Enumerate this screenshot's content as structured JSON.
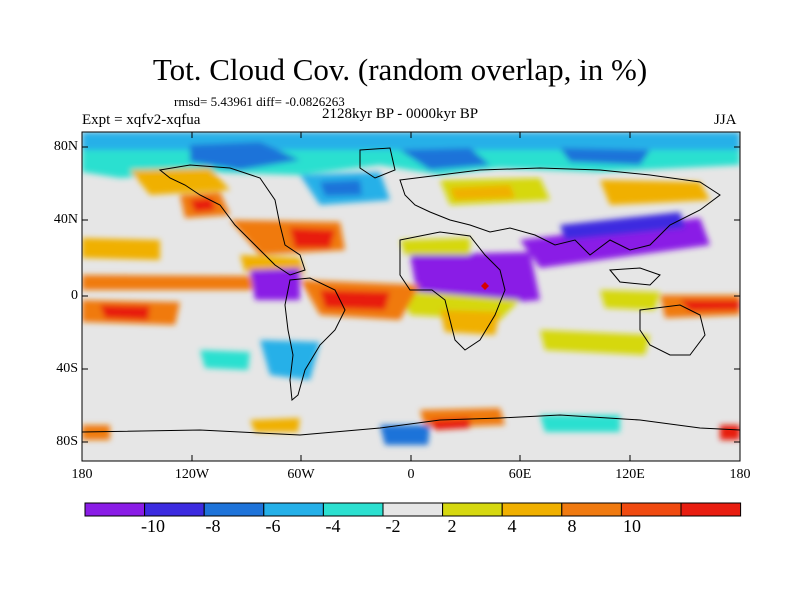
{
  "header": {
    "title": "Tot. Cloud Cov. (random overlap, in %)",
    "stats": "rmsd= 5.43961 diff= -0.0826263",
    "period": "2128kyr BP - 0000kyr BP",
    "experiment": "Expt = xqfv2-xqfua",
    "season": "JJA"
  },
  "axes": {
    "lat_labels": [
      "80N",
      "40N",
      "0",
      "40S",
      "80S"
    ],
    "lon_labels": [
      "180",
      "120W",
      "60W",
      "0",
      "60E",
      "120E",
      "180"
    ]
  },
  "colorbar": {
    "labels": [
      "-10",
      "-8",
      "-6",
      "-4",
      "-2",
      "2",
      "4",
      "8",
      "10"
    ],
    "colors": [
      "#8a1ce6",
      "#3c2be0",
      "#1e73d9",
      "#25b0e8",
      "#2ce0d0",
      "#e6e6e6",
      "#d6d810",
      "#f0b000",
      "#f07a10",
      "#f04a10",
      "#e81d10"
    ]
  }
}
